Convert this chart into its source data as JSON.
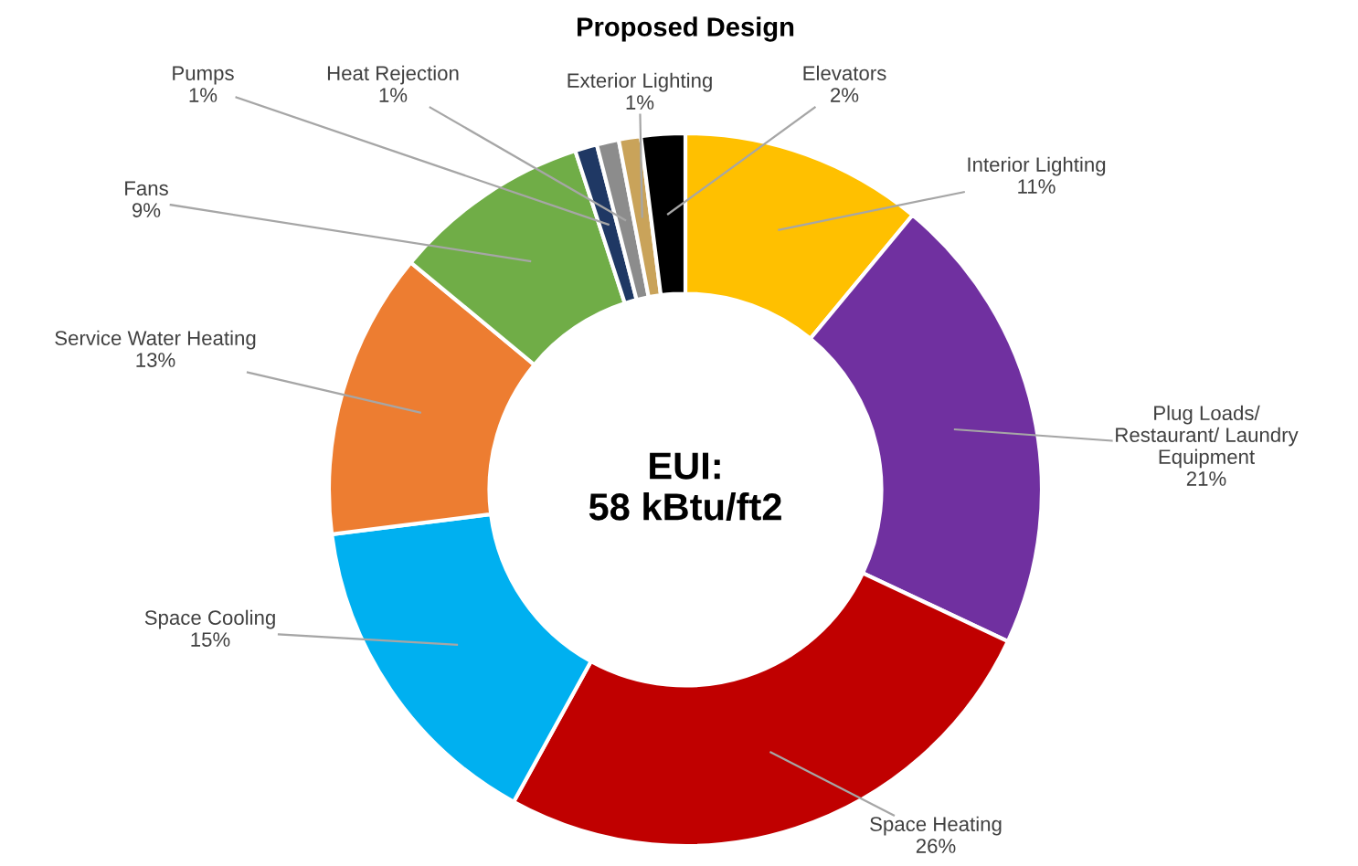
{
  "chart_data": {
    "type": "donut",
    "title": "Proposed Design",
    "categories": [
      "Interior Lighting",
      "Plug Loads/\nRestaurant/ Laundry\nEquipment",
      "Space Heating",
      "Space Cooling",
      "Service Water Heating",
      "Fans",
      "Pumps",
      "Heat Rejection",
      "Exterior Lighting",
      "Elevators"
    ],
    "values": [
      11,
      21,
      26,
      15,
      13,
      9,
      1,
      1,
      1,
      2
    ],
    "colors": [
      "#ffc000",
      "#7030a0",
      "#c00000",
      "#00b0f0",
      "#ed7d31",
      "#70ad47",
      "#1f3864",
      "#8c8c8c",
      "#c9a35a",
      "#000000"
    ],
    "value_labels": [
      "11%",
      "21%",
      "26%",
      "15%",
      "13%",
      "9%",
      "1%",
      "1%",
      "1%",
      "2%"
    ],
    "annotations": [
      "EUI:\n58 kBtu/ft2"
    ],
    "legend": false
  }
}
